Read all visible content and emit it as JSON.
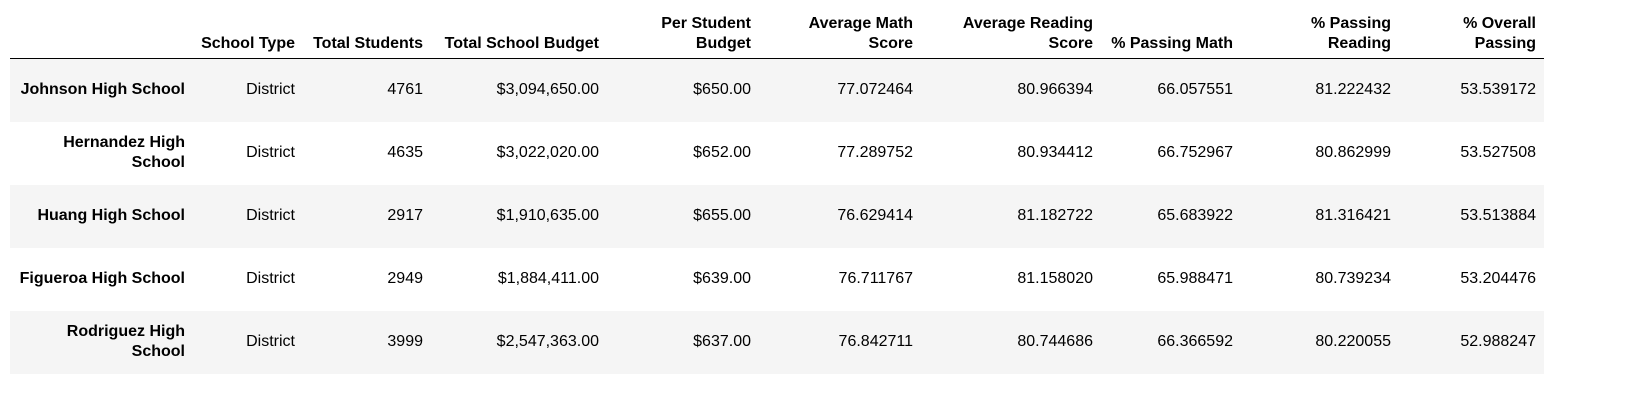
{
  "table": {
    "columns": [
      {
        "key": "name",
        "label": ""
      },
      {
        "key": "school_type",
        "label": "School Type"
      },
      {
        "key": "total_students",
        "label": "Total Students"
      },
      {
        "key": "total_school_budget",
        "label": "Total School Budget"
      },
      {
        "key": "per_student_budget",
        "label": "Per Student Budget"
      },
      {
        "key": "average_math_score",
        "label": "Average Math Score"
      },
      {
        "key": "average_reading_score",
        "label": "Average Reading Score"
      },
      {
        "key": "percent_passing_math",
        "label": "% Passing Math"
      },
      {
        "key": "percent_passing_reading",
        "label": "% Passing Reading"
      },
      {
        "key": "percent_overall_passing",
        "label": "% Overall Passing"
      }
    ],
    "rows": [
      {
        "name": "Johnson High School",
        "school_type": "District",
        "total_students": "4761",
        "total_school_budget": "$3,094,650.00",
        "per_student_budget": "$650.00",
        "average_math_score": "77.072464",
        "average_reading_score": "80.966394",
        "percent_passing_math": "66.057551",
        "percent_passing_reading": "81.222432",
        "percent_overall_passing": "53.539172"
      },
      {
        "name": "Hernandez High School",
        "school_type": "District",
        "total_students": "4635",
        "total_school_budget": "$3,022,020.00",
        "per_student_budget": "$652.00",
        "average_math_score": "77.289752",
        "average_reading_score": "80.934412",
        "percent_passing_math": "66.752967",
        "percent_passing_reading": "80.862999",
        "percent_overall_passing": "53.527508"
      },
      {
        "name": "Huang High School",
        "school_type": "District",
        "total_students": "2917",
        "total_school_budget": "$1,910,635.00",
        "per_student_budget": "$655.00",
        "average_math_score": "76.629414",
        "average_reading_score": "81.182722",
        "percent_passing_math": "65.683922",
        "percent_passing_reading": "81.316421",
        "percent_overall_passing": "53.513884"
      },
      {
        "name": "Figueroa High School",
        "school_type": "District",
        "total_students": "2949",
        "total_school_budget": "$1,884,411.00",
        "per_student_budget": "$639.00",
        "average_math_score": "76.711767",
        "average_reading_score": "81.158020",
        "percent_passing_math": "65.988471",
        "percent_passing_reading": "80.739234",
        "percent_overall_passing": "53.204476"
      },
      {
        "name": "Rodriguez High School",
        "school_type": "District",
        "total_students": "3999",
        "total_school_budget": "$2,547,363.00",
        "per_student_budget": "$637.00",
        "average_math_score": "76.842711",
        "average_reading_score": "80.744686",
        "percent_passing_math": "66.366592",
        "percent_passing_reading": "80.220055",
        "percent_overall_passing": "52.988247"
      }
    ]
  }
}
